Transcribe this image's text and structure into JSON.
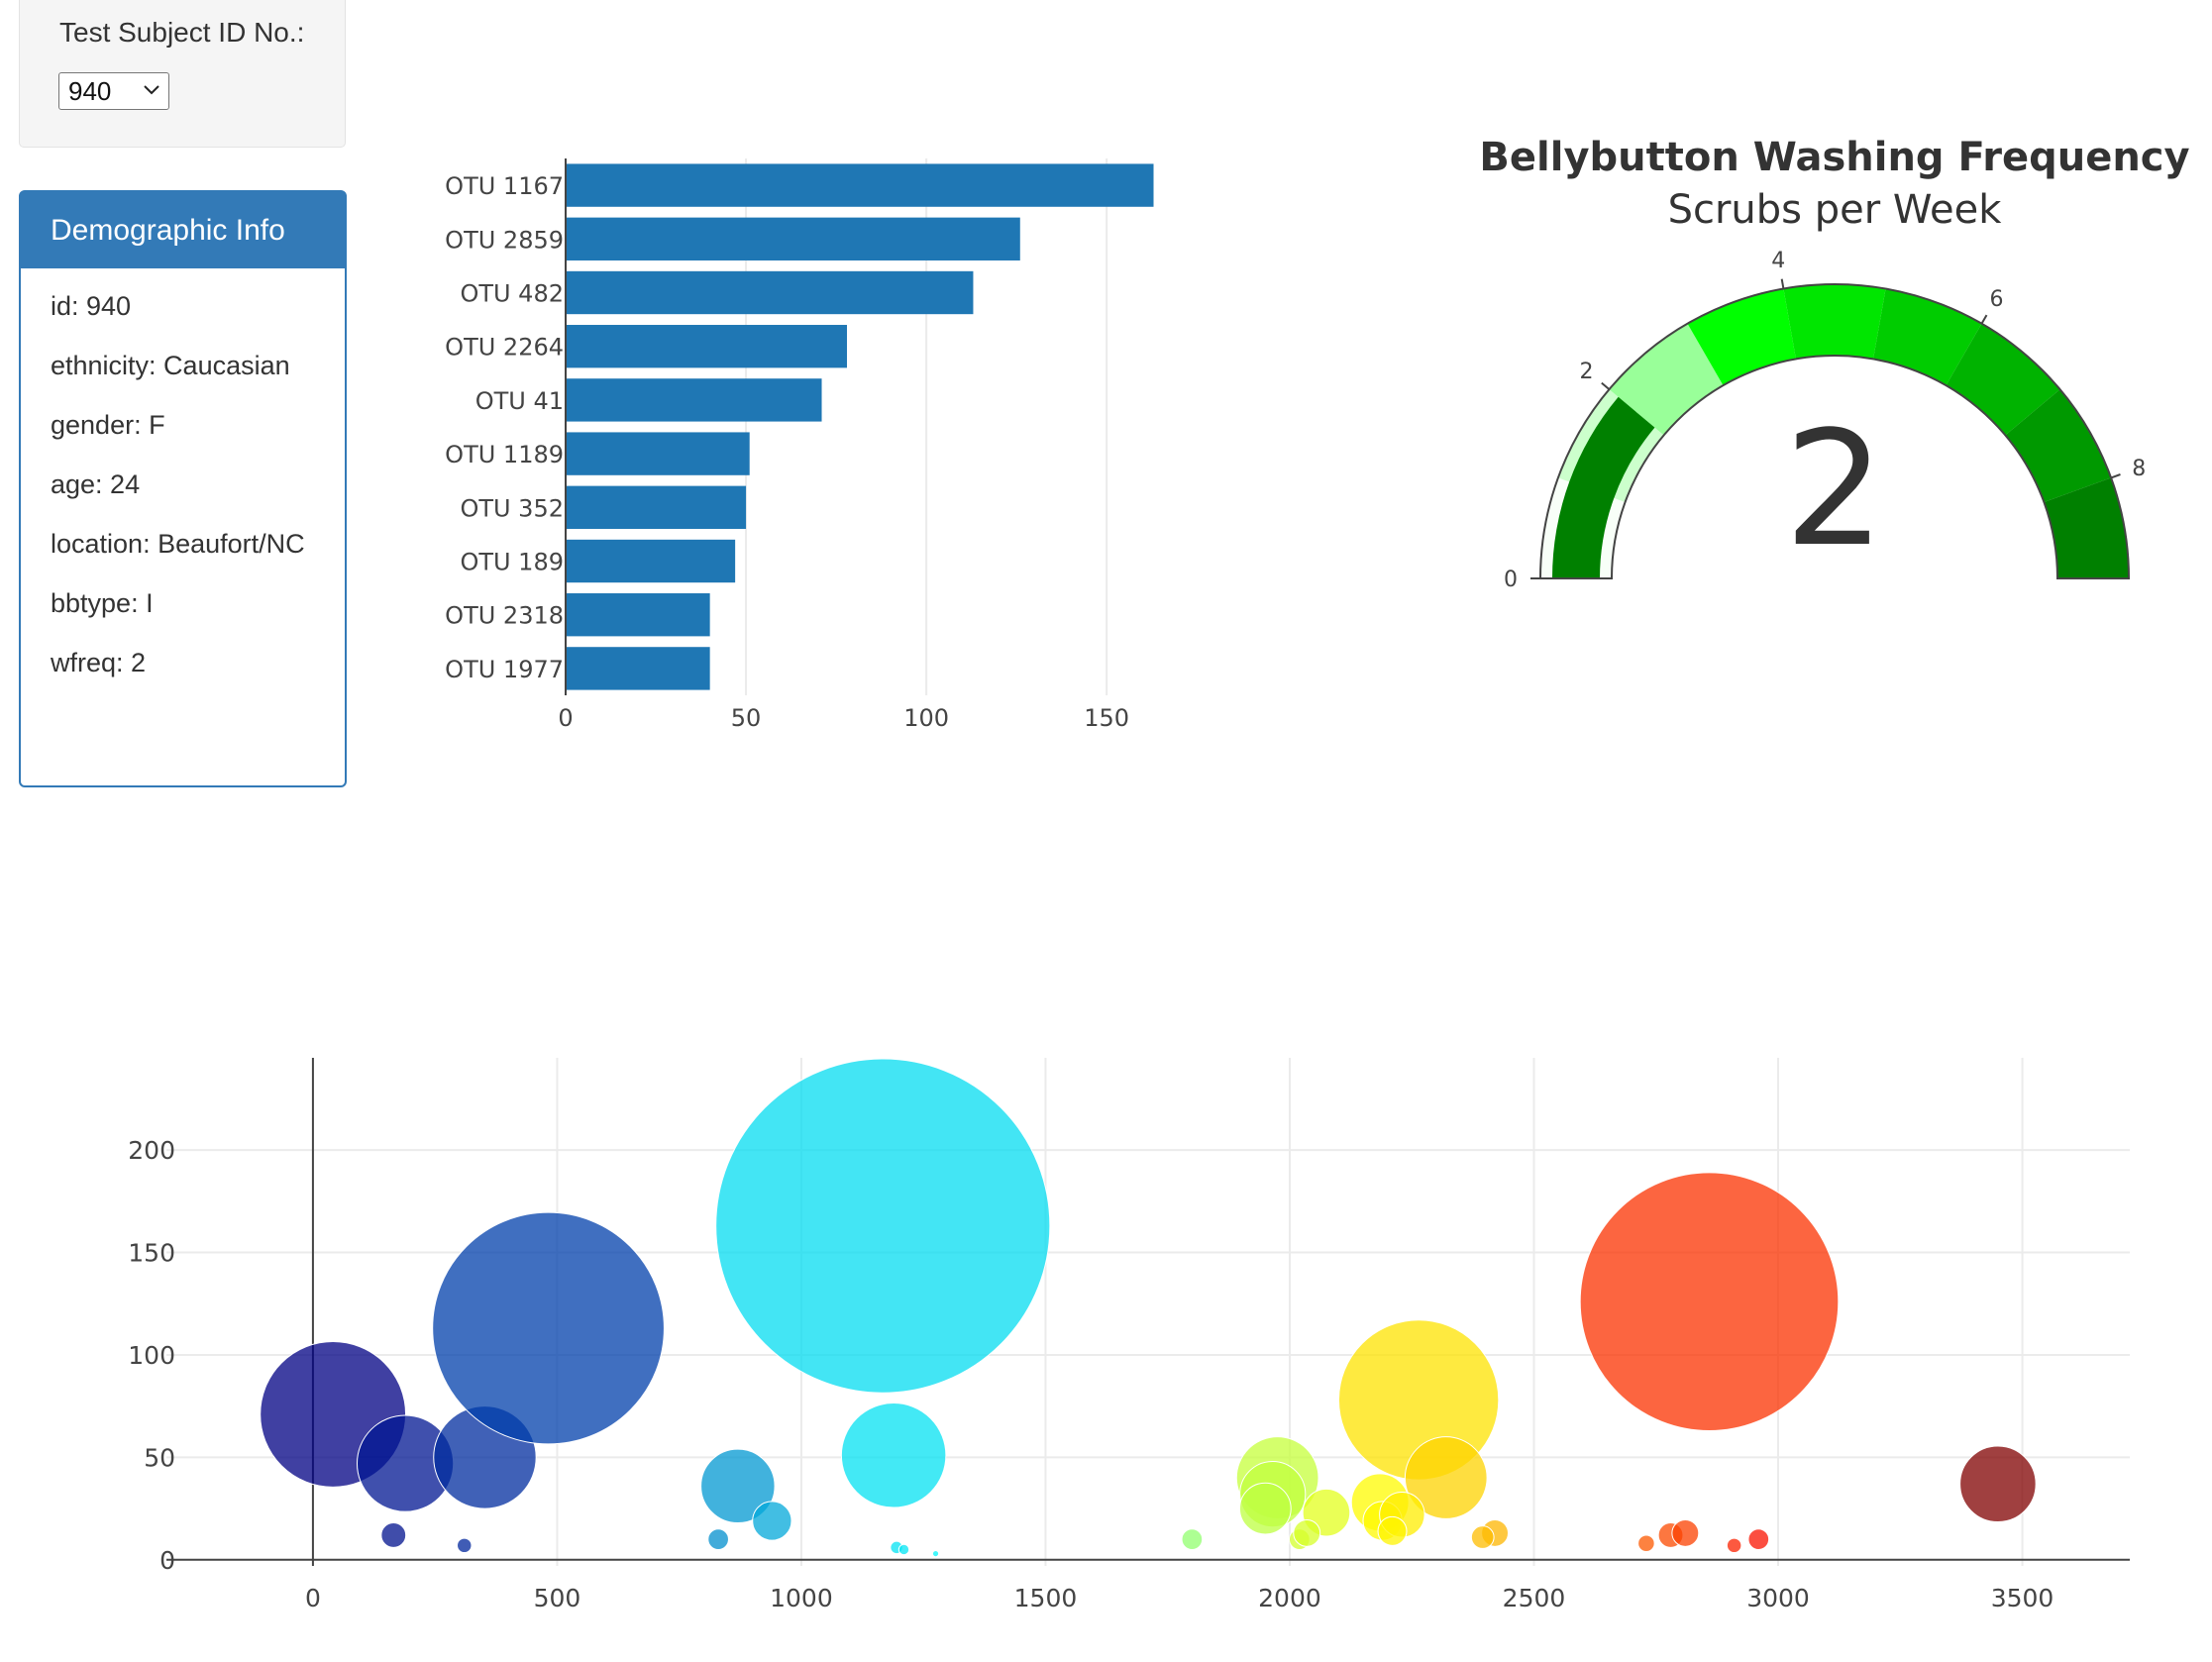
{
  "selector": {
    "label": "Test Subject ID No.:",
    "selected": "940"
  },
  "panel": {
    "title": "Demographic Info",
    "rows": [
      "id: 940",
      "ethnicity: Caucasian",
      "gender: F",
      "age: 24",
      "location: Beaufort/NC",
      "bbtype: I",
      "wfreq: 2"
    ]
  },
  "chart_data": [
    {
      "type": "bar",
      "orientation": "horizontal",
      "categories": [
        "OTU 1167",
        "OTU 2859",
        "OTU 482",
        "OTU 2264",
        "OTU 41",
        "OTU 1189",
        "OTU 352",
        "OTU 189",
        "OTU 2318",
        "OTU 1977"
      ],
      "values": [
        163,
        126,
        113,
        78,
        71,
        51,
        50,
        47,
        40,
        40
      ],
      "xlim": [
        0,
        170
      ],
      "xticks": [
        0,
        50,
        100,
        150
      ],
      "grid": true,
      "color": "#1f77b4"
    },
    {
      "type": "gauge",
      "title": "Bellybutton Washing Frequency",
      "subtitle": "Scrubs per Week",
      "value": 2,
      "range": [
        0,
        9
      ],
      "ticks": [
        0,
        2,
        4,
        6,
        8
      ],
      "bar_color": "#008000",
      "step_colors": [
        "#f8fff8",
        "#ccffcc",
        "#99ff99",
        "#00ff00",
        "#00e600",
        "#00cc00",
        "#00b300",
        "#009900",
        "#008000"
      ]
    },
    {
      "type": "scatter",
      "mode": "bubble",
      "x": [
        41,
        189,
        352,
        482,
        1167,
        1189,
        2264,
        2859,
        3450,
        870,
        940,
        165,
        310,
        830,
        1975,
        1965,
        1950,
        2075,
        2185,
        2190,
        2320,
        2230,
        2210,
        2020,
        2035,
        1800,
        2420,
        2395,
        2780,
        2810,
        2960,
        2730,
        2910,
        1195,
        1210,
        1275
      ],
      "y": [
        71,
        47,
        50,
        113,
        163,
        51,
        78,
        126,
        37,
        36,
        19,
        12,
        7,
        10,
        40,
        32,
        25,
        23,
        28,
        19,
        40,
        22,
        14,
        10,
        13,
        10,
        13,
        11,
        12,
        13,
        10,
        8,
        7,
        6,
        5,
        3
      ],
      "xlim": [
        -300,
        3720
      ],
      "ylim": [
        -3,
        245
      ],
      "xticks": [
        0,
        500,
        1000,
        1500,
        2000,
        2500,
        3000,
        3500
      ],
      "yticks": [
        0,
        50,
        100,
        150,
        200
      ],
      "grid": true,
      "colorscale": "Jet"
    }
  ]
}
